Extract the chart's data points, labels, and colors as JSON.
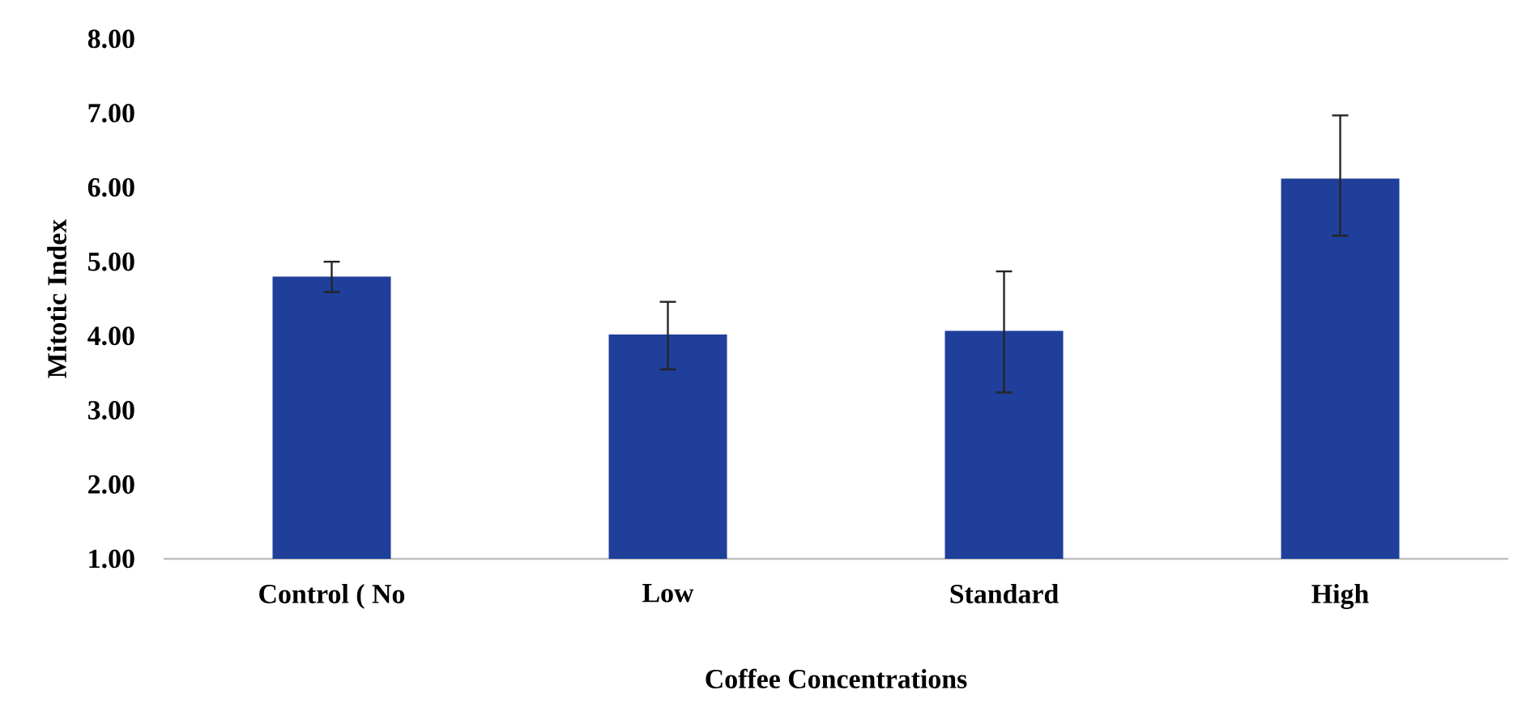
{
  "chart_data": {
    "type": "bar",
    "xlabel": "Coffee Concentrations",
    "ylabel": "Mitotic Index",
    "categories": [
      "Control ( No",
      "Low",
      "Standard",
      "High"
    ],
    "values": [
      4.8,
      4.02,
      4.07,
      6.12
    ],
    "errors": [
      [
        4.59,
        5.0
      ],
      [
        3.55,
        4.46
      ],
      [
        3.24,
        4.87
      ],
      [
        5.35,
        6.97
      ]
    ],
    "color": "#1f3f9b",
    "ylim": [
      1,
      8
    ],
    "yticks": [
      {
        "value": 1,
        "label": "1.00"
      },
      {
        "value": 2,
        "label": "2.00"
      },
      {
        "value": 3,
        "label": "3.00"
      },
      {
        "value": 4,
        "label": "4.00"
      },
      {
        "value": 5,
        "label": "5.00"
      },
      {
        "value": 6,
        "label": "6.00"
      },
      {
        "value": 7,
        "label": "7.00"
      },
      {
        "value": 8,
        "label": "8.00"
      }
    ]
  }
}
